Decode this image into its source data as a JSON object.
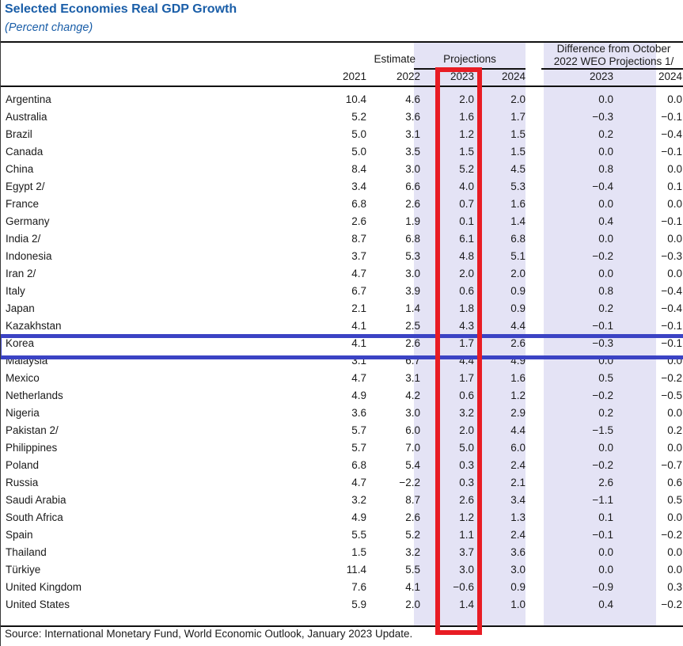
{
  "title": "Selected Economies Real GDP Growth",
  "subtitle": "(Percent change)",
  "header": {
    "estimate_label": "Estimate",
    "projections_label": "Projections",
    "difference_label_line1": "Difference from October",
    "difference_label_line2": "2022 WEO Projections 1/",
    "year_columns": [
      "2021",
      "2022",
      "2023",
      "2024",
      "2023",
      "2024"
    ]
  },
  "rows": [
    {
      "country": "Argentina",
      "values": [
        "10.4",
        "4.6",
        "2.0",
        "2.0",
        "0.0",
        "0.0"
      ]
    },
    {
      "country": "Australia",
      "values": [
        "5.2",
        "3.6",
        "1.6",
        "1.7",
        "−0.3",
        "−0.1"
      ]
    },
    {
      "country": "Brazil",
      "values": [
        "5.0",
        "3.1",
        "1.2",
        "1.5",
        "0.2",
        "−0.4"
      ]
    },
    {
      "country": "Canada",
      "values": [
        "5.0",
        "3.5",
        "1.5",
        "1.5",
        "0.0",
        "−0.1"
      ]
    },
    {
      "country": "China",
      "values": [
        "8.4",
        "3.0",
        "5.2",
        "4.5",
        "0.8",
        "0.0"
      ]
    },
    {
      "country": "Egypt 2/",
      "values": [
        "3.4",
        "6.6",
        "4.0",
        "5.3",
        "−0.4",
        "0.1"
      ]
    },
    {
      "country": "France",
      "values": [
        "6.8",
        "2.6",
        "0.7",
        "1.6",
        "0.0",
        "0.0"
      ]
    },
    {
      "country": "Germany",
      "values": [
        "2.6",
        "1.9",
        "0.1",
        "1.4",
        "0.4",
        "−0.1"
      ]
    },
    {
      "country": "India 2/",
      "values": [
        "8.7",
        "6.8",
        "6.1",
        "6.8",
        "0.0",
        "0.0"
      ]
    },
    {
      "country": "Indonesia",
      "values": [
        "3.7",
        "5.3",
        "4.8",
        "5.1",
        "−0.2",
        "−0.3"
      ]
    },
    {
      "country": "Iran 2/",
      "values": [
        "4.7",
        "3.0",
        "2.0",
        "2.0",
        "0.0",
        "0.0"
      ]
    },
    {
      "country": "Italy",
      "values": [
        "6.7",
        "3.9",
        "0.6",
        "0.9",
        "0.8",
        "−0.4"
      ]
    },
    {
      "country": "Japan",
      "values": [
        "2.1",
        "1.4",
        "1.8",
        "0.9",
        "0.2",
        "−0.4"
      ]
    },
    {
      "country": "Kazakhstan",
      "values": [
        "4.1",
        "2.5",
        "4.3",
        "4.4",
        "−0.1",
        "−0.1"
      ]
    },
    {
      "country": "Korea",
      "values": [
        "4.1",
        "2.6",
        "1.7",
        "2.6",
        "−0.3",
        "−0.1"
      ]
    },
    {
      "country": "Malaysia",
      "values": [
        "3.1",
        "6.7",
        "4.4",
        "4.9",
        "0.0",
        "0.0"
      ]
    },
    {
      "country": "Mexico",
      "values": [
        "4.7",
        "3.1",
        "1.7",
        "1.6",
        "0.5",
        "−0.2"
      ]
    },
    {
      "country": "Netherlands",
      "values": [
        "4.9",
        "4.2",
        "0.6",
        "1.2",
        "−0.2",
        "−0.5"
      ]
    },
    {
      "country": "Nigeria",
      "values": [
        "3.6",
        "3.0",
        "3.2",
        "2.9",
        "0.2",
        "0.0"
      ]
    },
    {
      "country": "Pakistan 2/",
      "values": [
        "5.7",
        "6.0",
        "2.0",
        "4.4",
        "−1.5",
        "0.2"
      ]
    },
    {
      "country": "Philippines",
      "values": [
        "5.7",
        "7.0",
        "5.0",
        "6.0",
        "0.0",
        "0.0"
      ]
    },
    {
      "country": "Poland",
      "values": [
        "6.8",
        "5.4",
        "0.3",
        "2.4",
        "−0.2",
        "−0.7"
      ]
    },
    {
      "country": "Russia",
      "values": [
        "4.7",
        "−2.2",
        "0.3",
        "2.1",
        "2.6",
        "0.6"
      ]
    },
    {
      "country": "Saudi Arabia",
      "values": [
        "3.2",
        "8.7",
        "2.6",
        "3.4",
        "−1.1",
        "0.5"
      ]
    },
    {
      "country": "South Africa",
      "values": [
        "4.9",
        "2.6",
        "1.2",
        "1.3",
        "0.1",
        "0.0"
      ]
    },
    {
      "country": "Spain",
      "values": [
        "5.5",
        "5.2",
        "1.1",
        "2.4",
        "−0.1",
        "−0.2"
      ]
    },
    {
      "country": "Thailand",
      "values": [
        "1.5",
        "3.2",
        "3.7",
        "3.6",
        "0.0",
        "0.0"
      ]
    },
    {
      "country": "Türkiye",
      "values": [
        "11.4",
        "5.5",
        "3.0",
        "3.0",
        "0.0",
        "0.0"
      ]
    },
    {
      "country": "United Kingdom",
      "values": [
        "7.6",
        "4.1",
        "−0.6",
        "0.9",
        "−0.9",
        "0.3"
      ]
    },
    {
      "country": "United States",
      "values": [
        "5.9",
        "2.0",
        "1.4",
        "1.0",
        "0.4",
        "−0.2"
      ]
    }
  ],
  "annotations": {
    "red_box_highlighted_column": "2023 Projections",
    "blue_box_highlighted_row": "Korea"
  },
  "source": "Source: International Monetary Fund, World Economic Outlook, January 2023 Update.",
  "colors": {
    "title_blue": "#1A5EA8",
    "band_lavender": "#E4E3F5",
    "red_box": "#E81C24",
    "blue_box": "#3B43C4"
  }
}
